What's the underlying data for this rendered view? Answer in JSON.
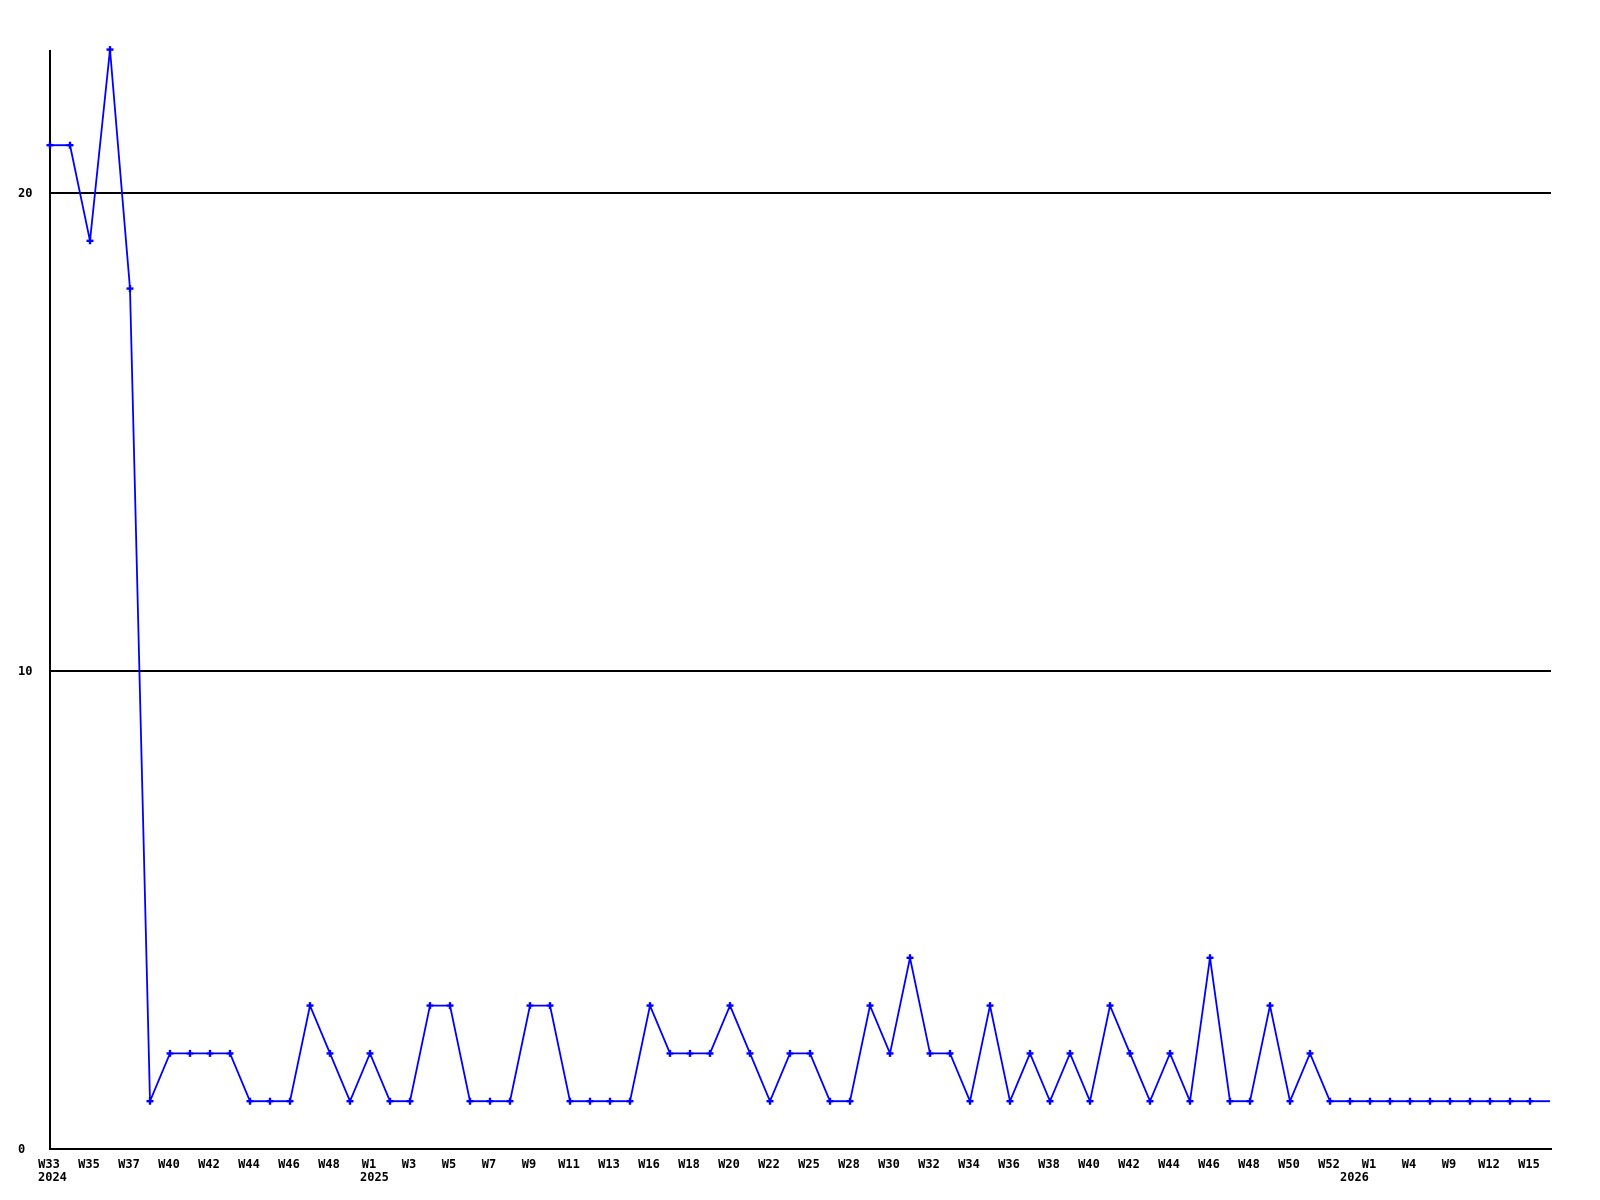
{
  "chart_data": {
    "type": "line",
    "title": "",
    "background_color": "#ffffff",
    "line_color": "#0000ff",
    "marker": "plus",
    "marker_color": "#0000ff",
    "axis_color": "#000000",
    "grid_values": [
      10,
      20
    ],
    "y_ticks": [
      {
        "label": "0",
        "value": 0
      },
      {
        "label": "10",
        "value": 10
      },
      {
        "label": "20",
        "value": 20
      }
    ],
    "ylim": [
      0,
      23
    ],
    "legend": "none",
    "x_ticks": [
      {
        "index": 0,
        "label": "W33"
      },
      {
        "index": 2,
        "label": "W35"
      },
      {
        "index": 4,
        "label": "W37"
      },
      {
        "index": 6,
        "label": "W40"
      },
      {
        "index": 8,
        "label": "W42"
      },
      {
        "index": 10,
        "label": "W44"
      },
      {
        "index": 12,
        "label": "W46"
      },
      {
        "index": 14,
        "label": "W48"
      },
      {
        "index": 16,
        "label": "W1"
      },
      {
        "index": 18,
        "label": "W3"
      },
      {
        "index": 20,
        "label": "W5"
      },
      {
        "index": 22,
        "label": "W7"
      },
      {
        "index": 24,
        "label": "W9"
      },
      {
        "index": 26,
        "label": "W11"
      },
      {
        "index": 28,
        "label": "W13"
      },
      {
        "index": 30,
        "label": "W16"
      },
      {
        "index": 32,
        "label": "W18"
      },
      {
        "index": 34,
        "label": "W20"
      },
      {
        "index": 36,
        "label": "W22"
      },
      {
        "index": 38,
        "label": "W25"
      },
      {
        "index": 40,
        "label": "W28"
      },
      {
        "index": 42,
        "label": "W30"
      },
      {
        "index": 44,
        "label": "W32"
      },
      {
        "index": 46,
        "label": "W34"
      },
      {
        "index": 48,
        "label": "W36"
      },
      {
        "index": 50,
        "label": "W38"
      },
      {
        "index": 52,
        "label": "W40"
      },
      {
        "index": 54,
        "label": "W42"
      },
      {
        "index": 56,
        "label": "W44"
      },
      {
        "index": 58,
        "label": "W46"
      },
      {
        "index": 60,
        "label": "W48"
      },
      {
        "index": 62,
        "label": "W50"
      },
      {
        "index": 64,
        "label": "W52"
      },
      {
        "index": 66,
        "label": "W1"
      },
      {
        "index": 68,
        "label": "W4"
      },
      {
        "index": 70,
        "label": "W9"
      },
      {
        "index": 72,
        "label": "W12"
      },
      {
        "index": 74,
        "label": "W15"
      }
    ],
    "year_labels": [
      {
        "index": 0,
        "label": "2024"
      },
      {
        "index": 16,
        "label": "2025"
      },
      {
        "index": 66,
        "label": "2026"
      }
    ],
    "series": [
      {
        "name": "weekly-values",
        "color": "#0000ff",
        "values": [
          21,
          21,
          19,
          23,
          18,
          1,
          2,
          2,
          2,
          2,
          1,
          1,
          1,
          3,
          2,
          1,
          2,
          1,
          1,
          3,
          3,
          1,
          1,
          1,
          3,
          3,
          1,
          1,
          1,
          1,
          3,
          2,
          2,
          2,
          3,
          2,
          1,
          2,
          2,
          1,
          1,
          3,
          2,
          4,
          2,
          2,
          1,
          3,
          1,
          2,
          1,
          2,
          1,
          3,
          2,
          1,
          2,
          1,
          4,
          1,
          1,
          3,
          1,
          2,
          1,
          1,
          1,
          1,
          1,
          1,
          1,
          1,
          1,
          1,
          1,
          1
        ]
      }
    ]
  }
}
